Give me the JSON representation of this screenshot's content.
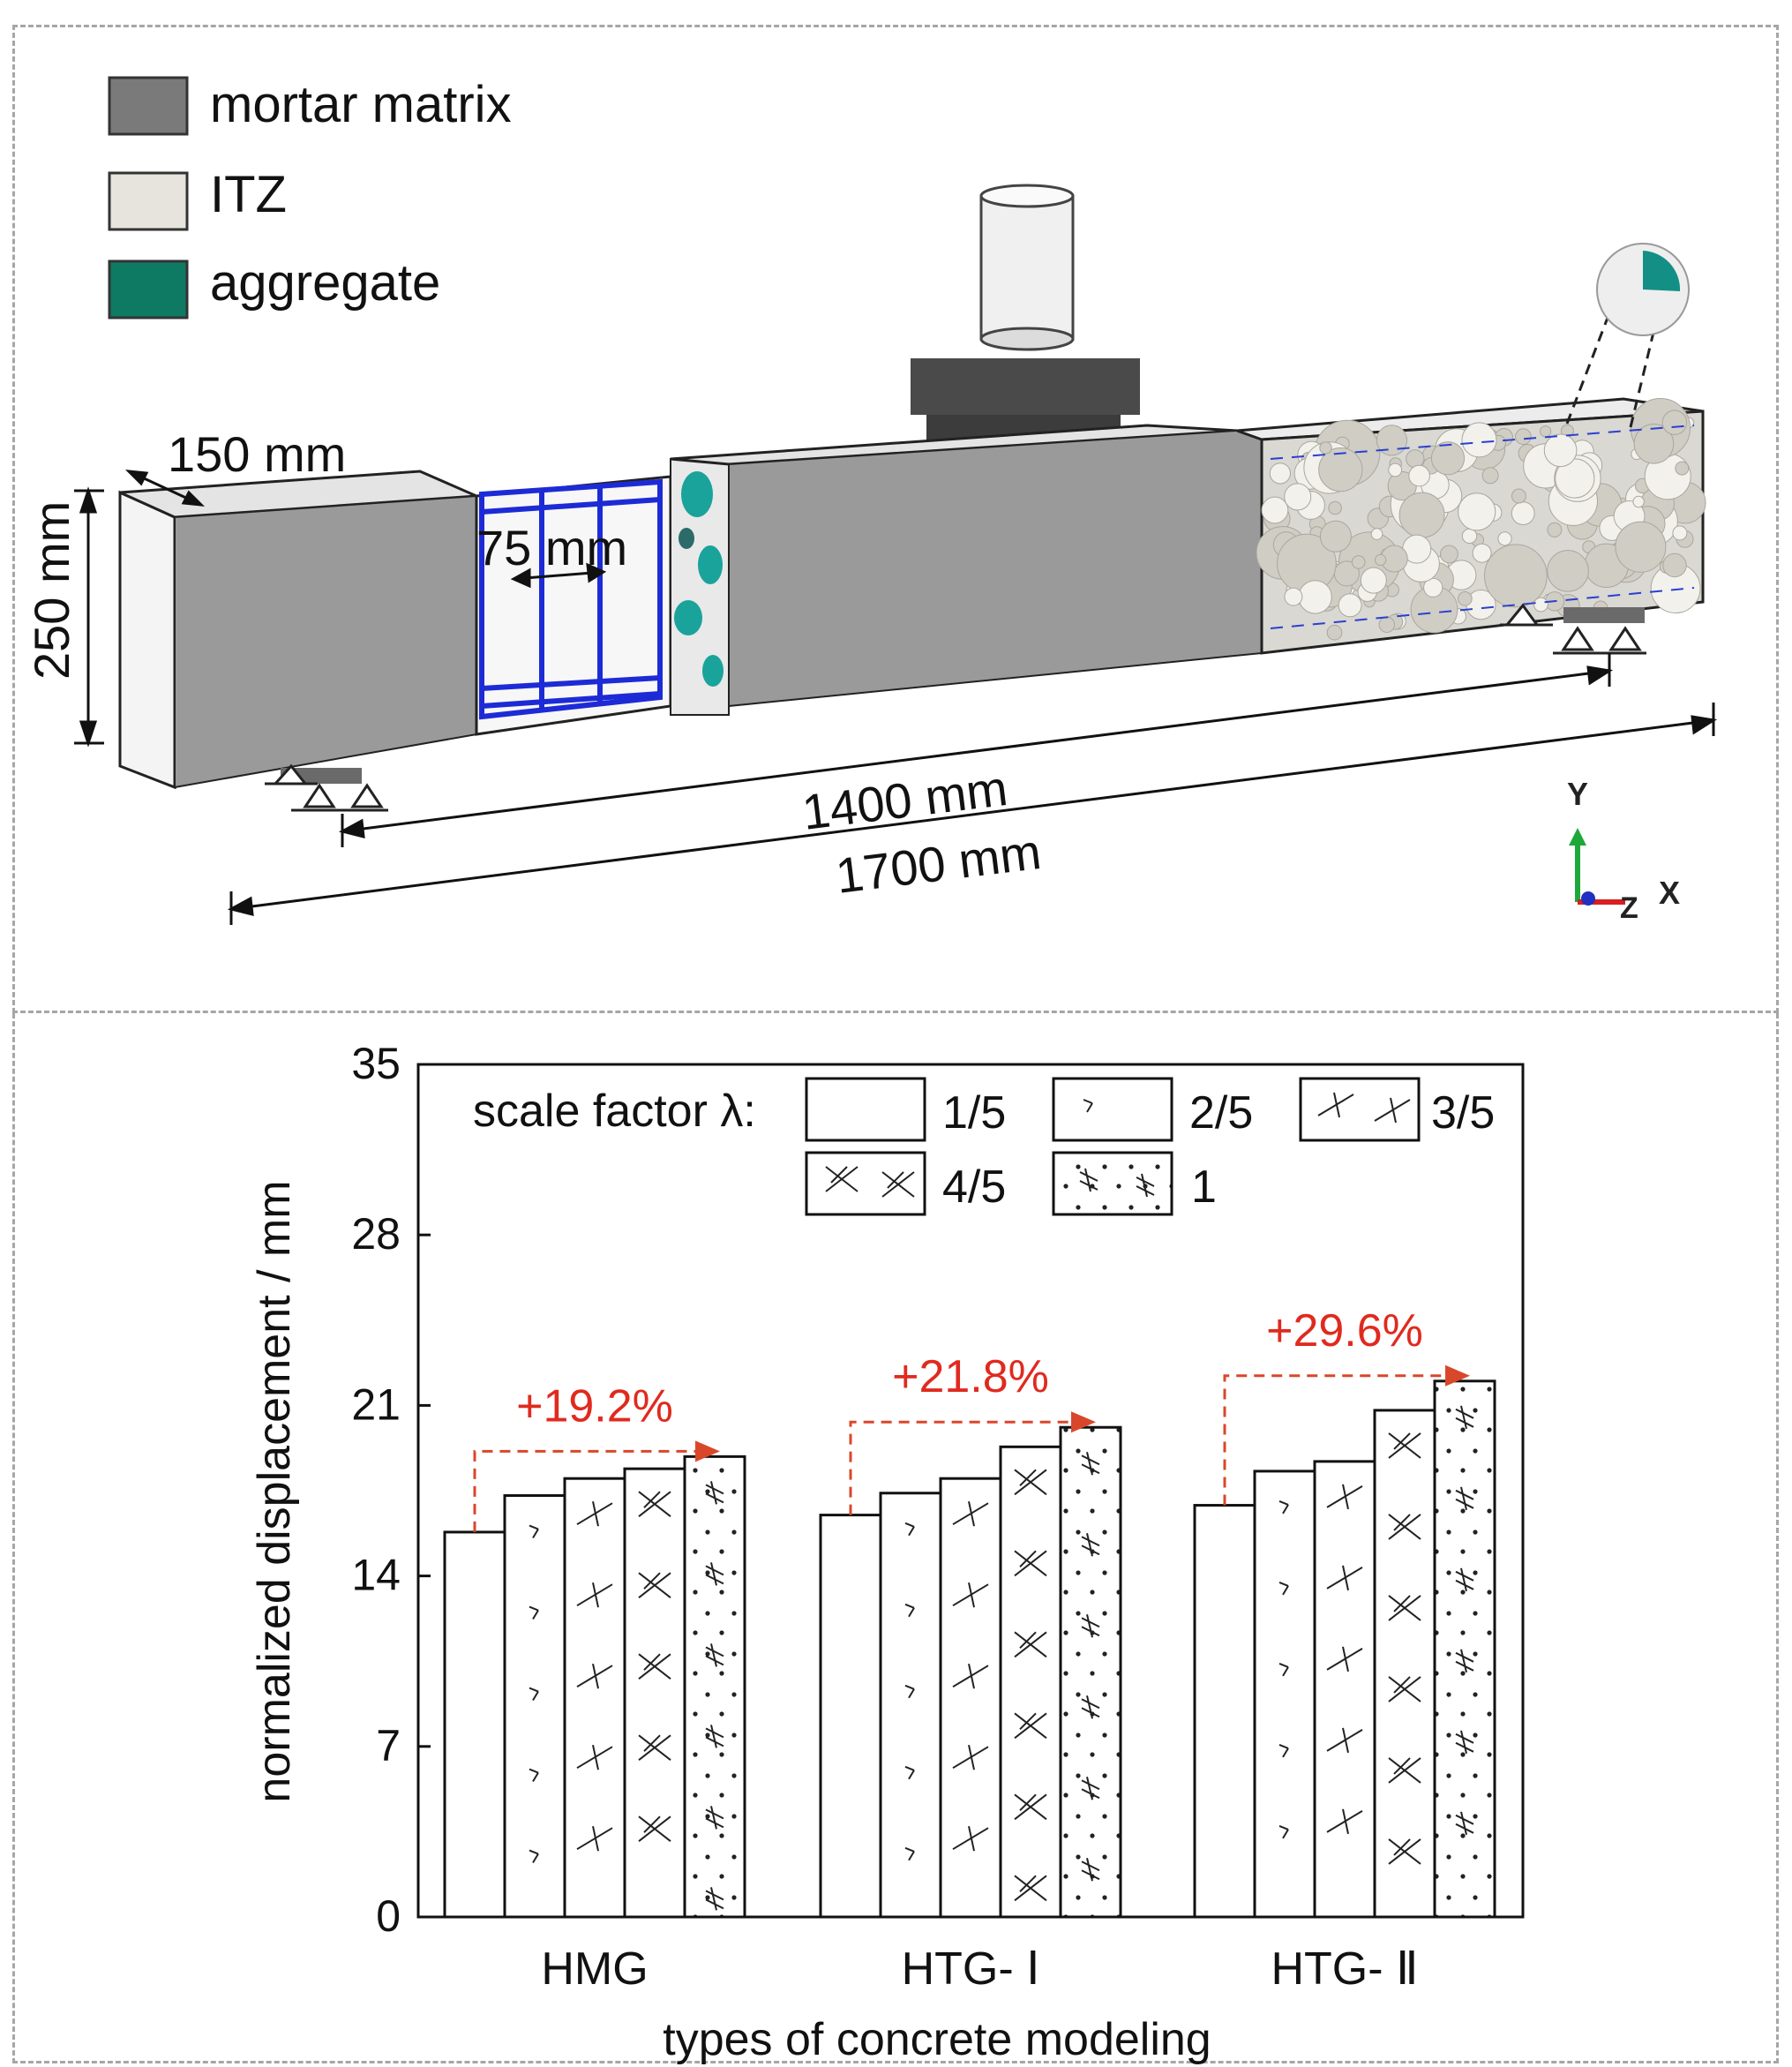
{
  "diagram": {
    "legend": [
      {
        "label": "mortar matrix",
        "color": "#7a7a7a"
      },
      {
        "label": "ITZ",
        "color": "#e6e4dc"
      },
      {
        "label": "aggregate",
        "color": "#0f7a63"
      }
    ],
    "dimensions": {
      "width": "150 mm",
      "height": "250 mm",
      "spacing": "75 mm",
      "span": "1400 mm",
      "length": "1700 mm"
    },
    "axes_labels": {
      "y": "Y",
      "x": "X",
      "z": "Z"
    }
  },
  "chart_data": {
    "type": "bar",
    "ylabel": "normalized displacement / mm",
    "xlabel": "types of concrete modeling",
    "ylim": [
      0,
      35
    ],
    "yticks": [
      "0",
      "7",
      "14",
      "21",
      "28",
      "35"
    ],
    "categories": [
      "HMG",
      "HTG- Ⅰ",
      "HTG- Ⅱ"
    ],
    "legend_title": "scale factor λ:",
    "series": [
      {
        "name": "1/5",
        "values": [
          15.8,
          16.5,
          16.9
        ]
      },
      {
        "name": "2/5",
        "values": [
          17.3,
          17.4,
          18.3
        ]
      },
      {
        "name": "3/5",
        "values": [
          18.0,
          18.0,
          18.7
        ]
      },
      {
        "name": "4/5",
        "values": [
          18.4,
          19.3,
          20.8
        ]
      },
      {
        "name": "1",
        "values": [
          18.9,
          20.1,
          22.0
        ]
      }
    ],
    "annotations": [
      "+19.2%",
      "+21.8%",
      "+29.6%"
    ]
  }
}
